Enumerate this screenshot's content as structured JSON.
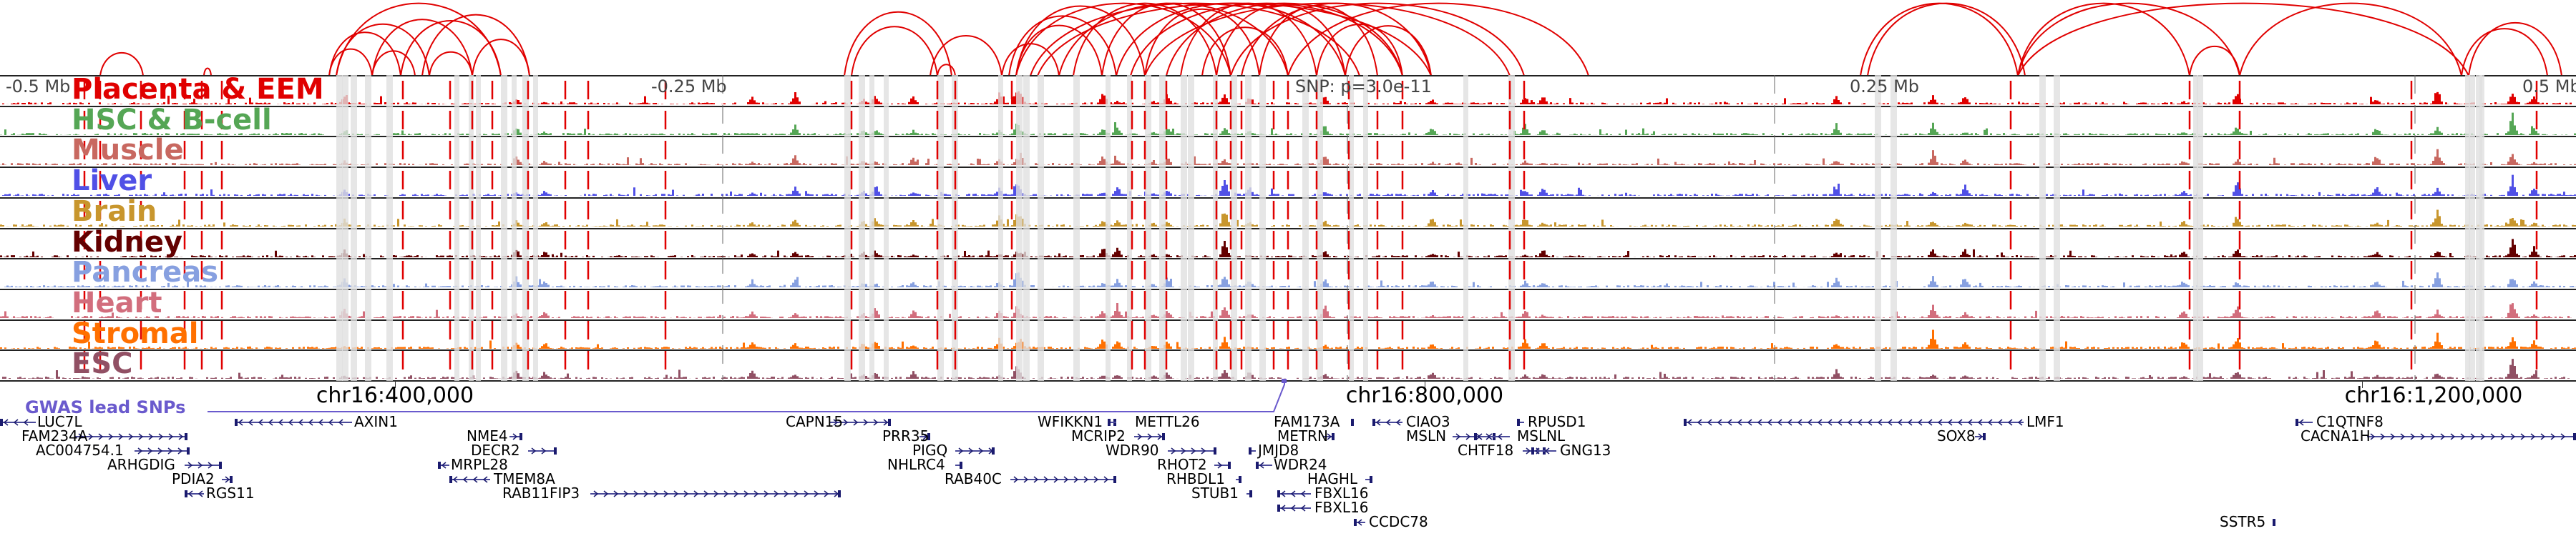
{
  "colors": {
    "snp_line": "#e00000",
    "shade": "#e0e0e0",
    "gene": "#1a1a6e",
    "gwas": "#6a5acd"
  },
  "axis": {
    "left": "-0.5 Mb",
    "left_mid": "-0.25 Mb",
    "snp": "SNP: p=3.0e-11",
    "right_mid": "0.25 Mb",
    "right": "0.5 Mb"
  },
  "tracks": [
    {
      "label": "Placenta & EEM",
      "color": "#e00000"
    },
    {
      "label": "HSC & B-cell",
      "color": "#55a655"
    },
    {
      "label": "Muscle",
      "color": "#c86860"
    },
    {
      "label": "Liver",
      "color": "#5050e6"
    },
    {
      "label": "Brain",
      "color": "#c8962d"
    },
    {
      "label": "Kidney",
      "color": "#640000"
    },
    {
      "label": "Pancreas",
      "color": "#87a0e0"
    },
    {
      "label": "Heart",
      "color": "#d26e7d"
    },
    {
      "label": "Stromal",
      "color": "#ff7000"
    },
    {
      "label": "ESC",
      "color": "#915064"
    }
  ],
  "coordinates": [
    "chr16:400,000",
    "chr16:800,000",
    "chr16:1,200,000"
  ],
  "gwas_label": "GWAS lead SNPs",
  "genes": [
    {
      "name": "LUC7L",
      "strand": "-"
    },
    {
      "name": "AXIN1",
      "strand": "-"
    },
    {
      "name": "CAPN15",
      "strand": "+"
    },
    {
      "name": "WFIKKN1",
      "strand": "+"
    },
    {
      "name": "METTL26",
      "strand": "-"
    },
    {
      "name": "FAM173A",
      "strand": "+"
    },
    {
      "name": "CIAO3",
      "strand": "-"
    },
    {
      "name": "RPUSD1",
      "strand": "-"
    },
    {
      "name": "LMF1",
      "strand": "-"
    },
    {
      "name": "C1QTNF8",
      "strand": "-"
    },
    {
      "name": "FAM234A",
      "strand": "+"
    },
    {
      "name": "NME4",
      "strand": "+"
    },
    {
      "name": "PRR35",
      "strand": "+"
    },
    {
      "name": "MCRIP2",
      "strand": "+"
    },
    {
      "name": "METRN",
      "strand": "+"
    },
    {
      "name": "MSLN",
      "strand": "+"
    },
    {
      "name": "MSLNL",
      "strand": "-"
    },
    {
      "name": "SOX8",
      "strand": "+"
    },
    {
      "name": "CACNA1H",
      "strand": "+"
    },
    {
      "name": "AC004754.1",
      "strand": "+"
    },
    {
      "name": "DECR2",
      "strand": "+"
    },
    {
      "name": "PIGQ",
      "strand": "+"
    },
    {
      "name": "WDR90",
      "strand": "+"
    },
    {
      "name": "JMJD8",
      "strand": "-"
    },
    {
      "name": "CHTF18",
      "strand": "+"
    },
    {
      "name": "GNG13",
      "strand": "-"
    },
    {
      "name": "ARHGDIG",
      "strand": "+"
    },
    {
      "name": "MRPL28",
      "strand": "-"
    },
    {
      "name": "NHLRC4",
      "strand": "+"
    },
    {
      "name": "RHOT2",
      "strand": "+"
    },
    {
      "name": "WDR24",
      "strand": "-"
    },
    {
      "name": "PDIA2",
      "strand": "+"
    },
    {
      "name": "TMEM8A",
      "strand": "-"
    },
    {
      "name": "RAB40C",
      "strand": "+"
    },
    {
      "name": "RHBDL1",
      "strand": "+"
    },
    {
      "name": "HAGHL",
      "strand": "+"
    },
    {
      "name": "RGS11",
      "strand": "-"
    },
    {
      "name": "RAB11FIP3",
      "strand": "+"
    },
    {
      "name": "STUB1",
      "strand": "+"
    },
    {
      "name": "FBXL16",
      "strand": "-"
    },
    {
      "name": "FBXL16",
      "strand": "-"
    },
    {
      "name": "CCDC78",
      "strand": "-"
    },
    {
      "name": "SSTR5",
      "strand": "+"
    }
  ]
}
